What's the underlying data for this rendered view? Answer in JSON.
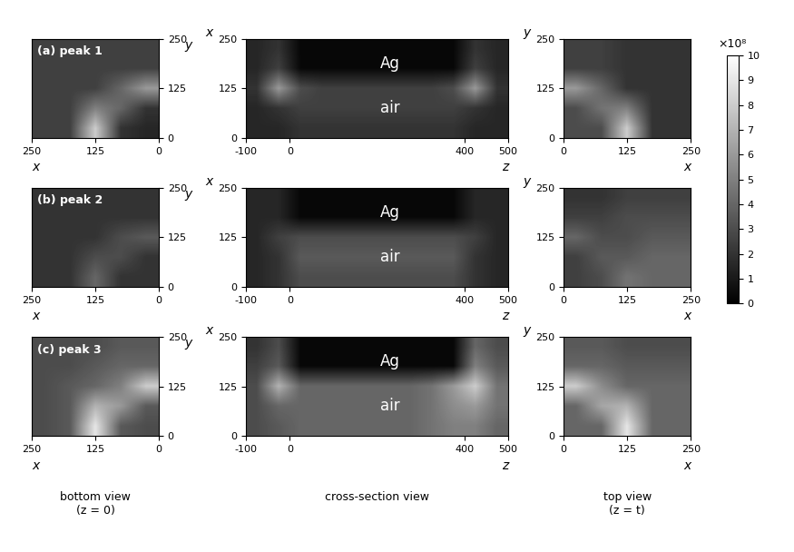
{
  "chart_data": [
    {
      "type": "heatmap",
      "title": "(a) peak 1",
      "xlabel": "x",
      "ylabel": "y",
      "xlim": [
        250,
        0
      ],
      "ylim": [
        0,
        250
      ],
      "xticks": [
        250,
        125,
        0
      ],
      "yticks": [
        0,
        125,
        250
      ],
      "cells": [
        [
          1.5,
          2,
          8,
          2.5,
          2.5
        ],
        [
          2,
          4,
          5,
          2.5,
          2.5
        ],
        [
          6,
          4,
          2.5,
          2.5,
          2.5
        ],
        [
          2.5,
          2.5,
          2.5,
          2.5,
          2.5
        ],
        [
          2.5,
          2.5,
          2.5,
          2.5,
          2.5
        ]
      ]
    },
    {
      "type": "heatmap",
      "xlabel": "z",
      "ylabel": "x",
      "annotations": [
        "Ag",
        "air"
      ],
      "xlim": [
        -100,
        500
      ],
      "ylim": [
        0,
        250
      ],
      "xticks": [
        -100,
        0,
        400,
        500
      ],
      "yticks": [
        0,
        125,
        250
      ],
      "cells": [
        [
          1.5,
          1.5,
          2,
          2,
          2,
          2,
          2,
          2,
          2,
          2,
          1.5,
          1.5
        ],
        [
          1.5,
          2,
          2.5,
          2.5,
          2.5,
          2.5,
          2.5,
          2.5,
          2.5,
          2.5,
          2,
          1.5
        ],
        [
          2,
          6,
          3,
          2.5,
          2.5,
          2.5,
          2.5,
          2.5,
          2.5,
          3,
          6,
          2
        ],
        [
          1.5,
          2.5,
          0.3,
          0.3,
          0.3,
          0.3,
          0.3,
          0.3,
          0.3,
          0.3,
          2.5,
          1.5
        ],
        [
          1.5,
          2,
          0.3,
          0.3,
          0.3,
          0.3,
          0.3,
          0.3,
          0.3,
          0.3,
          2,
          1.5
        ]
      ]
    },
    {
      "type": "heatmap",
      "xlabel": "x",
      "ylabel": "y",
      "xlim": [
        0,
        250
      ],
      "ylim": [
        0,
        250
      ],
      "xticks": [
        0,
        125,
        250
      ],
      "yticks": [
        0,
        125,
        250
      ],
      "cells": [
        [
          3,
          3,
          8,
          2,
          2
        ],
        [
          3,
          4.5,
          5,
          2,
          2
        ],
        [
          6,
          4,
          2,
          2,
          2
        ],
        [
          2.5,
          2.5,
          2,
          2,
          2
        ],
        [
          2.5,
          2.5,
          2,
          2,
          2
        ]
      ]
    },
    {
      "type": "heatmap",
      "title": "(b) peak 2",
      "xlabel": "x",
      "ylabel": "y",
      "xlim": [
        250,
        0
      ],
      "ylim": [
        0,
        250
      ],
      "xticks": [
        250,
        125,
        0
      ],
      "yticks": [
        0,
        125,
        250
      ],
      "cells": [
        [
          2,
          2,
          4,
          2,
          2
        ],
        [
          2,
          3,
          3,
          2,
          2
        ],
        [
          3.5,
          3,
          2,
          2,
          2
        ],
        [
          2,
          2,
          2,
          2,
          2
        ],
        [
          2,
          2,
          2,
          2,
          2
        ]
      ]
    },
    {
      "type": "heatmap",
      "xlabel": "z",
      "ylabel": "x",
      "annotations": [
        "Ag",
        "air"
      ],
      "xlim": [
        -100,
        500
      ],
      "ylim": [
        0,
        250
      ],
      "xticks": [
        -100,
        0,
        400,
        500
      ],
      "yticks": [
        0,
        125,
        250
      ],
      "cells": [
        [
          1.5,
          2,
          3,
          3,
          3,
          3,
          3,
          3,
          3,
          3,
          2,
          1.5
        ],
        [
          1.5,
          2,
          3.5,
          3.5,
          3.5,
          3.5,
          3.5,
          3.5,
          3.5,
          3.5,
          2,
          1.5
        ],
        [
          1.5,
          2.5,
          3,
          3,
          3,
          3,
          3,
          3,
          3,
          3,
          2.5,
          1.5
        ],
        [
          1.5,
          1.5,
          0.3,
          0.3,
          0.3,
          0.3,
          0.3,
          0.3,
          0.3,
          0.3,
          1.5,
          1.5
        ],
        [
          1.5,
          1.5,
          0.3,
          0.3,
          0.3,
          0.3,
          0.3,
          0.3,
          0.3,
          0.3,
          1.5,
          1.5
        ]
      ]
    },
    {
      "type": "heatmap",
      "xlabel": "x",
      "ylabel": "y",
      "xlim": [
        0,
        250
      ],
      "ylim": [
        0,
        250
      ],
      "xticks": [
        0,
        125,
        250
      ],
      "yticks": [
        0,
        125,
        250
      ],
      "cells": [
        [
          2.5,
          3,
          4.5,
          4,
          4
        ],
        [
          2.5,
          3.5,
          3.5,
          4,
          4
        ],
        [
          4,
          3,
          3,
          3.5,
          3.5
        ],
        [
          2.5,
          2.5,
          3,
          3,
          3
        ],
        [
          2,
          2,
          2.5,
          2.5,
          2.5
        ]
      ]
    },
    {
      "type": "heatmap",
      "title": "(c) peak 3",
      "xlabel": "x",
      "ylabel": "y",
      "xlim": [
        250,
        0
      ],
      "ylim": [
        0,
        250
      ],
      "xticks": [
        250,
        125,
        0
      ],
      "yticks": [
        0,
        125,
        250
      ],
      "cells": [
        [
          3,
          3.5,
          9,
          3.5,
          3
        ],
        [
          3.5,
          6,
          7,
          3.5,
          3
        ],
        [
          8,
          5,
          4,
          3.5,
          3
        ],
        [
          4,
          4,
          3.5,
          3,
          3
        ],
        [
          3.5,
          3.5,
          3,
          3,
          3
        ]
      ]
    },
    {
      "type": "heatmap",
      "xlabel": "z",
      "ylabel": "x",
      "annotations": [
        "Ag",
        "air"
      ],
      "xlim": [
        -100,
        500
      ],
      "ylim": [
        0,
        250
      ],
      "xticks": [
        -100,
        0,
        400,
        500
      ],
      "yticks": [
        0,
        125,
        250
      ],
      "cells": [
        [
          3,
          3.5,
          4,
          4,
          4,
          4,
          4,
          4,
          4.5,
          5,
          5,
          4
        ],
        [
          3,
          4,
          4,
          4,
          4,
          4,
          4,
          4,
          4.5,
          5.5,
          6,
          4.5
        ],
        [
          3,
          7,
          4,
          4,
          4,
          4,
          4,
          4,
          4.5,
          6,
          8,
          4.5
        ],
        [
          2.5,
          3.5,
          0.3,
          0.3,
          0.3,
          0.3,
          0.3,
          0.3,
          0.3,
          0.3,
          5,
          3.5
        ],
        [
          2,
          3,
          0.3,
          0.3,
          0.3,
          0.3,
          0.3,
          0.3,
          0.3,
          0.3,
          4,
          3
        ]
      ]
    },
    {
      "type": "heatmap",
      "xlabel": "x",
      "ylabel": "y",
      "xlim": [
        0,
        250
      ],
      "ylim": [
        0,
        250
      ],
      "xticks": [
        0,
        125,
        250
      ],
      "yticks": [
        0,
        125,
        250
      ],
      "cells": [
        [
          4,
          4,
          9,
          4,
          4
        ],
        [
          4,
          6.5,
          7,
          4,
          4
        ],
        [
          8,
          5.5,
          4,
          4,
          4
        ],
        [
          4,
          4,
          3.5,
          3.5,
          3.5
        ],
        [
          3.5,
          3.5,
          3,
          3,
          3
        ]
      ]
    }
  ],
  "colorbar": {
    "label": "×10⁸",
    "lim": [
      0,
      10
    ],
    "ticks": [
      0,
      1,
      2,
      3,
      4,
      5,
      6,
      7,
      8,
      9,
      10
    ]
  },
  "column_labels": [
    [
      "bottom view",
      "(z = 0)"
    ],
    [
      "cross-section view"
    ],
    [
      "top view",
      "(z = t)"
    ]
  ]
}
